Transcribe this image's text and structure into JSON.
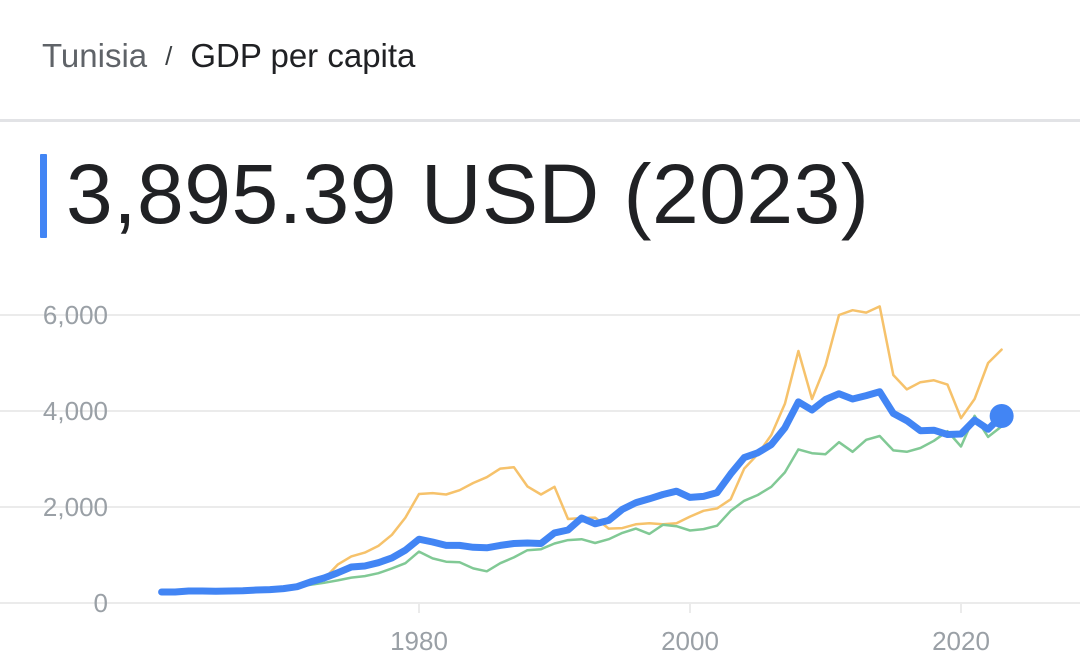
{
  "breadcrumb": {
    "country": "Tunisia",
    "separator": "/",
    "metric": "GDP per capita"
  },
  "headline": "3,895.39 USD (2023)",
  "colors": {
    "accent": "#4285f4",
    "upper_series": "#f6c26b",
    "lower_series": "#81c995",
    "grid": "#ebebeb",
    "tick_text": "#9aa0a6"
  },
  "chart_data": {
    "type": "line",
    "title": "",
    "xlabel": "",
    "ylabel": "",
    "xlim": [
      1957,
      2030
    ],
    "ylim": [
      0,
      6000
    ],
    "x_ticks": [
      1980,
      2000,
      2020
    ],
    "x_tick_labels": [
      "1980",
      "2000",
      "2020"
    ],
    "y_ticks": [
      0,
      2000,
      4000,
      6000
    ],
    "y_tick_labels": [
      "0",
      "2,000",
      "4,000",
      "6,000"
    ],
    "grid": true,
    "legend": "none",
    "highlight": {
      "x": 2023,
      "y": 3895.39
    },
    "series": [
      {
        "role": "main",
        "color": "#4285f4",
        "x": [
          1961,
          1962,
          1963,
          1964,
          1965,
          1966,
          1967,
          1968,
          1969,
          1970,
          1971,
          1972,
          1973,
          1974,
          1975,
          1976,
          1977,
          1978,
          1979,
          1980,
          1981,
          1982,
          1983,
          1984,
          1985,
          1986,
          1987,
          1988,
          1989,
          1990,
          1991,
          1992,
          1993,
          1994,
          1995,
          1996,
          1997,
          1998,
          1999,
          2000,
          2001,
          2002,
          2003,
          2004,
          2005,
          2006,
          2007,
          2008,
          2009,
          2010,
          2011,
          2012,
          2013,
          2014,
          2015,
          2016,
          2017,
          2018,
          2019,
          2020,
          2021,
          2022,
          2023
        ],
        "y": [
          230,
          230,
          250,
          250,
          245,
          250,
          255,
          270,
          280,
          300,
          340,
          440,
          520,
          630,
          750,
          770,
          840,
          940,
          1100,
          1330,
          1270,
          1200,
          1200,
          1160,
          1150,
          1200,
          1240,
          1250,
          1240,
          1460,
          1520,
          1770,
          1650,
          1720,
          1950,
          2090,
          2170,
          2260,
          2330,
          2200,
          2220,
          2300,
          2690,
          3030,
          3130,
          3300,
          3650,
          4190,
          4020,
          4240,
          4360,
          4250,
          4320,
          4400,
          3950,
          3800,
          3590,
          3600,
          3510,
          3520,
          3810,
          3620,
          3895.39
        ]
      },
      {
        "role": "upper",
        "color": "#f6c26b",
        "x": [
          1961,
          1962,
          1963,
          1964,
          1965,
          1966,
          1967,
          1968,
          1969,
          1970,
          1971,
          1972,
          1973,
          1974,
          1975,
          1976,
          1977,
          1978,
          1979,
          1980,
          1981,
          1982,
          1983,
          1984,
          1985,
          1986,
          1987,
          1988,
          1989,
          1990,
          1991,
          1992,
          1993,
          1994,
          1995,
          1996,
          1997,
          1998,
          1999,
          2000,
          2001,
          2002,
          2003,
          2004,
          2005,
          2006,
          2007,
          2008,
          2009,
          2010,
          2011,
          2012,
          2013,
          2014,
          2015,
          2016,
          2017,
          2018,
          2019,
          2020,
          2021,
          2022,
          2023
        ],
        "y": [
          230,
          230,
          250,
          250,
          245,
          250,
          255,
          270,
          280,
          300,
          340,
          400,
          500,
          800,
          970,
          1050,
          1190,
          1420,
          1780,
          2270,
          2290,
          2260,
          2350,
          2500,
          2620,
          2800,
          2830,
          2430,
          2260,
          2420,
          1750,
          1770,
          1780,
          1550,
          1560,
          1640,
          1660,
          1640,
          1660,
          1800,
          1920,
          1970,
          2160,
          2800,
          3100,
          3500,
          4150,
          5250,
          4250,
          4950,
          6000,
          6100,
          6050,
          6180,
          4750,
          4450,
          4600,
          4640,
          4550,
          3850,
          4250,
          5000,
          5280
        ]
      },
      {
        "role": "lower",
        "color": "#81c995",
        "x": [
          1961,
          1962,
          1963,
          1964,
          1965,
          1966,
          1967,
          1968,
          1969,
          1970,
          1971,
          1972,
          1973,
          1974,
          1975,
          1976,
          1977,
          1978,
          1979,
          1980,
          1981,
          1982,
          1983,
          1984,
          1985,
          1986,
          1987,
          1988,
          1989,
          1990,
          1991,
          1992,
          1993,
          1994,
          1995,
          1996,
          1997,
          1998,
          1999,
          2000,
          2001,
          2002,
          2003,
          2004,
          2005,
          2006,
          2007,
          2008,
          2009,
          2010,
          2011,
          2012,
          2013,
          2014,
          2015,
          2016,
          2017,
          2018,
          2019,
          2020,
          2021,
          2022,
          2023
        ],
        "y": [
          230,
          230,
          250,
          250,
          245,
          250,
          255,
          270,
          280,
          300,
          340,
          380,
          420,
          470,
          530,
          560,
          620,
          720,
          830,
          1070,
          930,
          860,
          850,
          720,
          660,
          830,
          950,
          1100,
          1120,
          1240,
          1310,
          1330,
          1250,
          1330,
          1460,
          1550,
          1440,
          1630,
          1600,
          1510,
          1540,
          1610,
          1920,
          2130,
          2250,
          2420,
          2720,
          3200,
          3120,
          3100,
          3350,
          3150,
          3400,
          3480,
          3180,
          3150,
          3230,
          3380,
          3580,
          3260,
          3900,
          3460,
          3680
        ]
      }
    ]
  }
}
